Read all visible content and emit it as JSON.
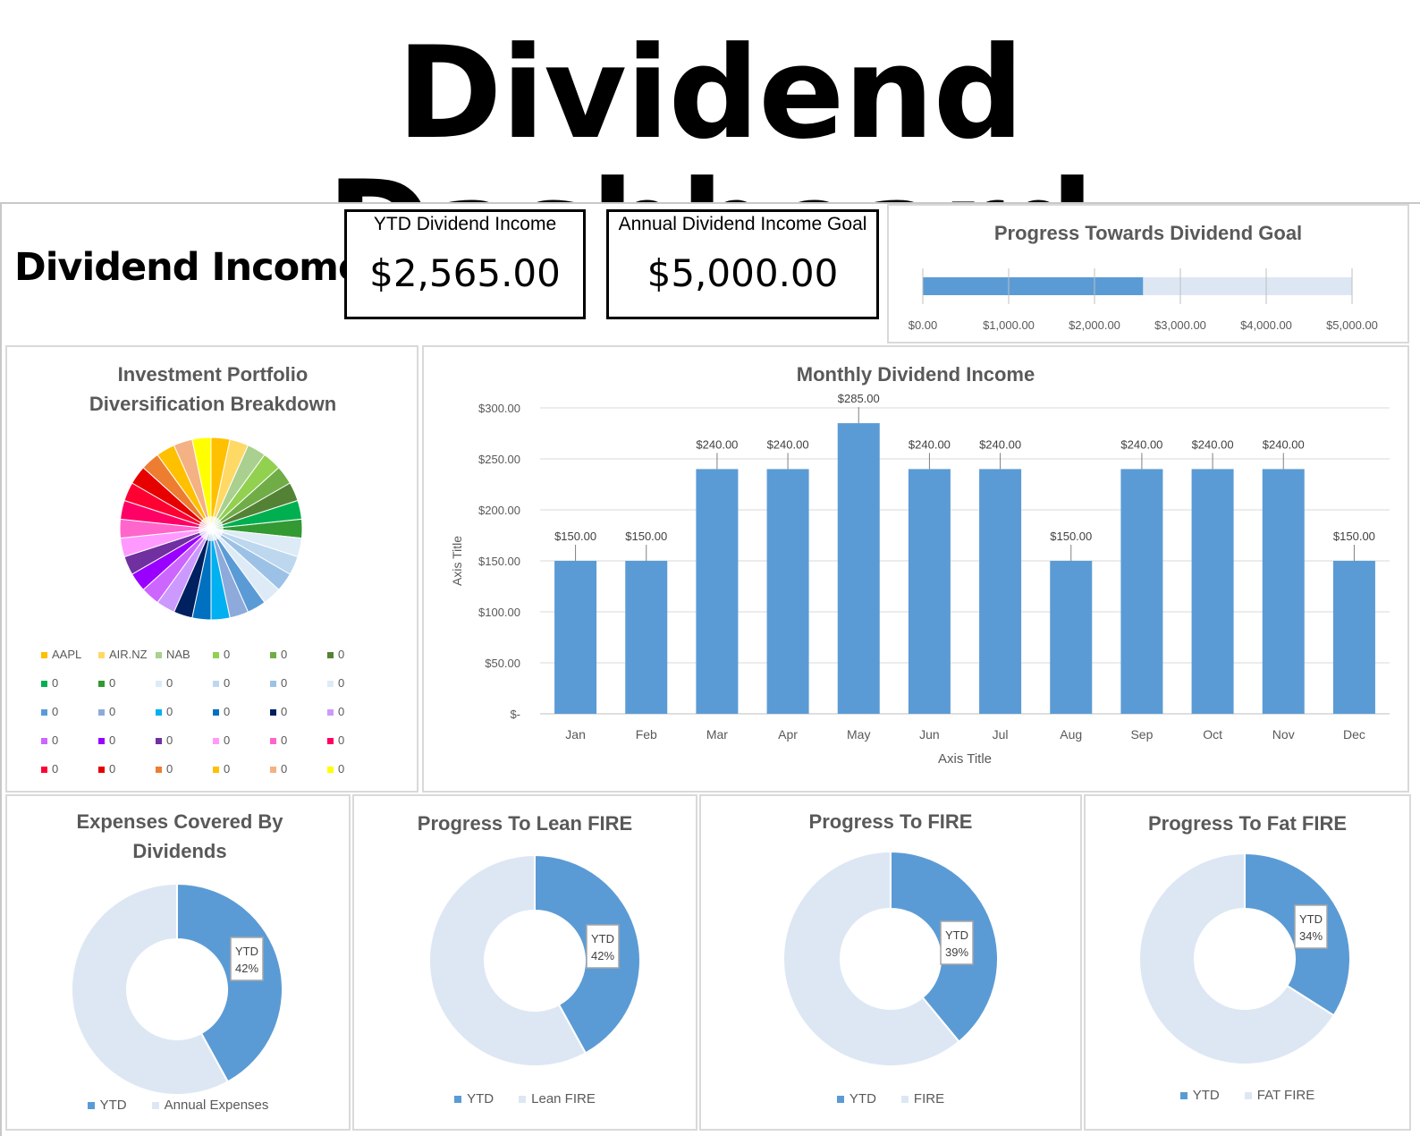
{
  "banner_title": "Dividend Dashboard",
  "header": {
    "label": "Dividend Income"
  },
  "kpis": {
    "ytd": {
      "label": "YTD Dividend Income",
      "value": "$2,565.00"
    },
    "goal": {
      "label": "Annual Dividend Income Goal",
      "value": "$5,000.00"
    }
  },
  "colors": {
    "accent": "#5b9bd5",
    "accent_light": "#dde7f4"
  },
  "chart_data": [
    {
      "type": "bar",
      "orientation": "horizontal",
      "title": "Progress Towards Dividend Goal",
      "value": 2565,
      "max": 5000,
      "xlim": [
        0,
        5000
      ],
      "ticks": [
        "$0.00",
        "$1,000.00",
        "$2,000.00",
        "$3,000.00",
        "$4,000.00",
        "$5,000.00"
      ]
    },
    {
      "type": "pie",
      "title": "Investment Portfolio Diversification Breakdown",
      "legend": [
        "AAPL",
        "AIR.NZ",
        "NAB",
        "0",
        "0",
        "0",
        "0",
        "0",
        "0",
        "0",
        "0",
        "0",
        "0",
        "0",
        "0",
        "0",
        "0",
        "0",
        "0",
        "0",
        "0",
        "0",
        "0",
        "0",
        "0",
        "0",
        "0",
        "0",
        "0",
        "0"
      ],
      "colors": [
        "#ffc000",
        "#ffd966",
        "#a9d08e",
        "#92d050",
        "#70ad47",
        "#548235",
        "#00b050",
        "#339933",
        "#ddebf7",
        "#bdd7ee",
        "#9bc2e6",
        "#deebf7",
        "#5b9bd5",
        "#8eaadb",
        "#00b0f0",
        "#0070c0",
        "#002060",
        "#cc99ff",
        "#cc66ff",
        "#9900ff",
        "#7030a0",
        "#ff99ff",
        "#ff66cc",
        "#ff0066",
        "#ff0033",
        "#e60000",
        "#ed7d31",
        "#ffc000",
        "#f4b183",
        "#ffff00"
      ],
      "values": [
        1,
        1,
        1,
        1,
        1,
        1,
        1,
        1,
        1,
        1,
        1,
        1,
        1,
        1,
        1,
        1,
        1,
        1,
        1,
        1,
        1,
        1,
        1,
        1,
        1,
        1,
        1,
        1,
        1,
        1
      ],
      "legend_position": "bottom"
    },
    {
      "type": "bar",
      "title": "Monthly Dividend Income",
      "categories": [
        "Jan",
        "Feb",
        "Mar",
        "Apr",
        "May",
        "Jun",
        "Jul",
        "Aug",
        "Sep",
        "Oct",
        "Nov",
        "Dec"
      ],
      "values": [
        150,
        150,
        240,
        240,
        285,
        240,
        240,
        150,
        240,
        240,
        240,
        150
      ],
      "value_labels": [
        "$150.00",
        "$150.00",
        "$240.00",
        "$240.00",
        "$285.00",
        "$240.00",
        "$240.00",
        "$150.00",
        "$240.00",
        "$240.00",
        "$240.00",
        "$150.00"
      ],
      "xlabel": "Axis Title",
      "ylabel": "Axis Title",
      "ylim": [
        0,
        300
      ],
      "yticks": [
        "$-",
        "$50.00",
        "$100.00",
        "$150.00",
        "$200.00",
        "$250.00",
        "$300.00"
      ],
      "grid": true
    },
    {
      "type": "pie",
      "donut": true,
      "title": "Expenses Covered By Dividends",
      "values": [
        42,
        58
      ],
      "label_name": "YTD",
      "label_value": "42%",
      "legend": [
        "YTD",
        "Annual Expenses"
      ]
    },
    {
      "type": "pie",
      "donut": true,
      "title": "Progress To Lean FIRE",
      "values": [
        42,
        58
      ],
      "label_name": "YTD",
      "label_value": "42%",
      "legend": [
        "YTD",
        "Lean FIRE"
      ]
    },
    {
      "type": "pie",
      "donut": true,
      "title": "Progress To FIRE",
      "values": [
        39,
        61
      ],
      "label_name": "YTD",
      "label_value": "39%",
      "legend": [
        "YTD",
        "FIRE"
      ]
    },
    {
      "type": "pie",
      "donut": true,
      "title": "Progress To Fat FIRE",
      "values": [
        34,
        66
      ],
      "label_name": "YTD",
      "label_value": "34%",
      "legend": [
        "YTD",
        "FAT FIRE"
      ]
    }
  ]
}
